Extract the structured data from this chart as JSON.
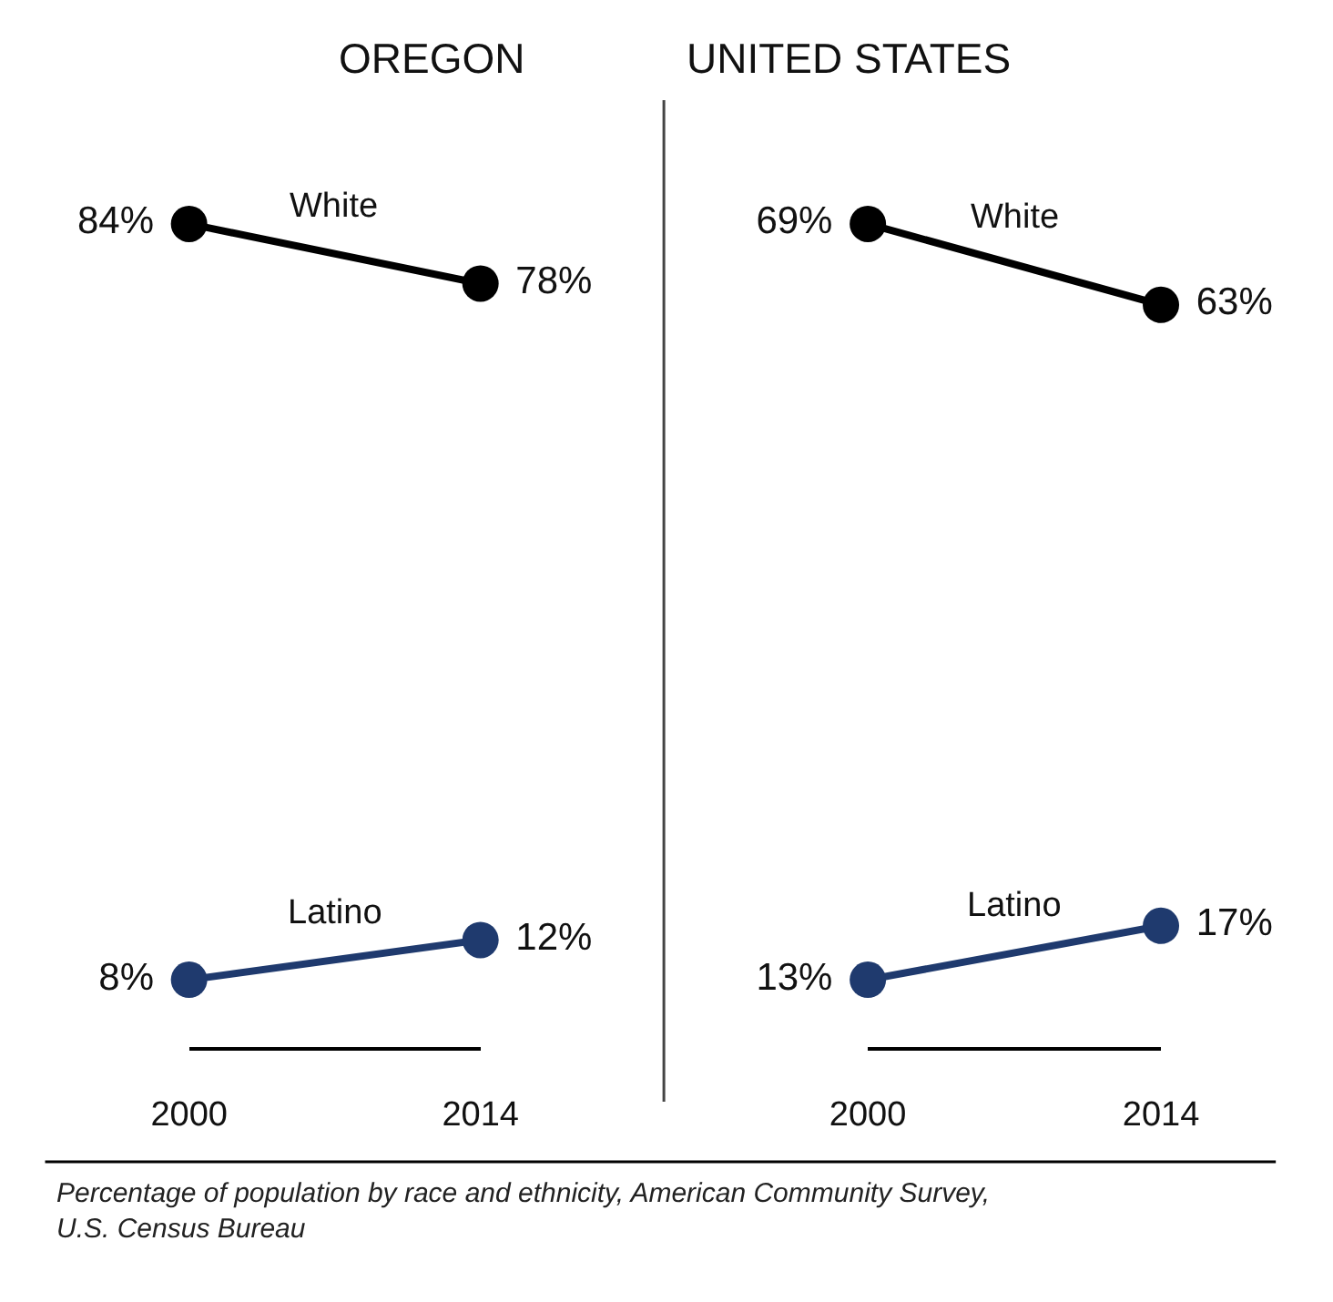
{
  "chart_data": [
    {
      "type": "line",
      "title": "OREGON",
      "categories": [
        "2000",
        "2014"
      ],
      "tick_labels": "x",
      "marker": "circle",
      "line_style": "solid",
      "series": [
        {
          "name": "White",
          "color": "#000000",
          "values": [
            84,
            78
          ],
          "value_labels": [
            "84%",
            "78%"
          ]
        },
        {
          "name": "Latino",
          "color": "#1f3a6e",
          "values": [
            8,
            12
          ],
          "value_labels": [
            "8%",
            "12%"
          ]
        }
      ],
      "annotations": [
        "Percentage of population by race and ethnicity, American Community Survey, U.S. Census Bureau"
      ]
    },
    {
      "type": "line",
      "title": "UNITED STATES",
      "categories": [
        "2000",
        "2014"
      ],
      "tick_labels": "x",
      "marker": "circle",
      "line_style": "solid",
      "series": [
        {
          "name": "White",
          "color": "#000000",
          "values": [
            69,
            63
          ],
          "value_labels": [
            "69%",
            "63%"
          ]
        },
        {
          "name": "Latino",
          "color": "#1f3a6e",
          "values": [
            13,
            17
          ],
          "value_labels": [
            "13%",
            "17%"
          ]
        }
      ]
    }
  ]
}
